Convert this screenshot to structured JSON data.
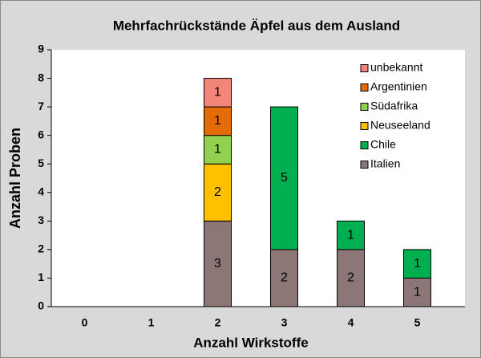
{
  "chart_data": {
    "type": "stacked_bar",
    "title": "Mehrfachrückstände Äpfel aus dem Ausland",
    "x_label": "Anzahl Wirkstoffe",
    "y_label": "Anzahl Proben",
    "categories": [
      "0",
      "1",
      "2",
      "3",
      "4",
      "5"
    ],
    "series": [
      {
        "name": "Italien",
        "color": "#8c7676",
        "values": [
          null,
          null,
          3,
          2,
          2,
          1
        ]
      },
      {
        "name": "Chile",
        "color": "#00b050",
        "values": [
          null,
          null,
          null,
          5,
          1,
          1
        ]
      },
      {
        "name": "Neuseeland",
        "color": "#ffc000",
        "values": [
          null,
          null,
          2,
          null,
          null,
          null
        ]
      },
      {
        "name": "Südafrika",
        "color": "#92d050",
        "values": [
          null,
          null,
          1,
          null,
          null,
          null
        ]
      },
      {
        "name": "Argentinien",
        "color": "#e36c09",
        "values": [
          null,
          null,
          1,
          null,
          null,
          null
        ]
      },
      {
        "name": "unbekannt",
        "color": "#f4857a",
        "values": [
          null,
          null,
          1,
          null,
          null,
          null
        ]
      }
    ],
    "ylim": [
      0,
      9
    ],
    "yticks": [
      0,
      1,
      2,
      3,
      4,
      5,
      6,
      7,
      8,
      9
    ],
    "grid": false,
    "legend": "top-right"
  }
}
